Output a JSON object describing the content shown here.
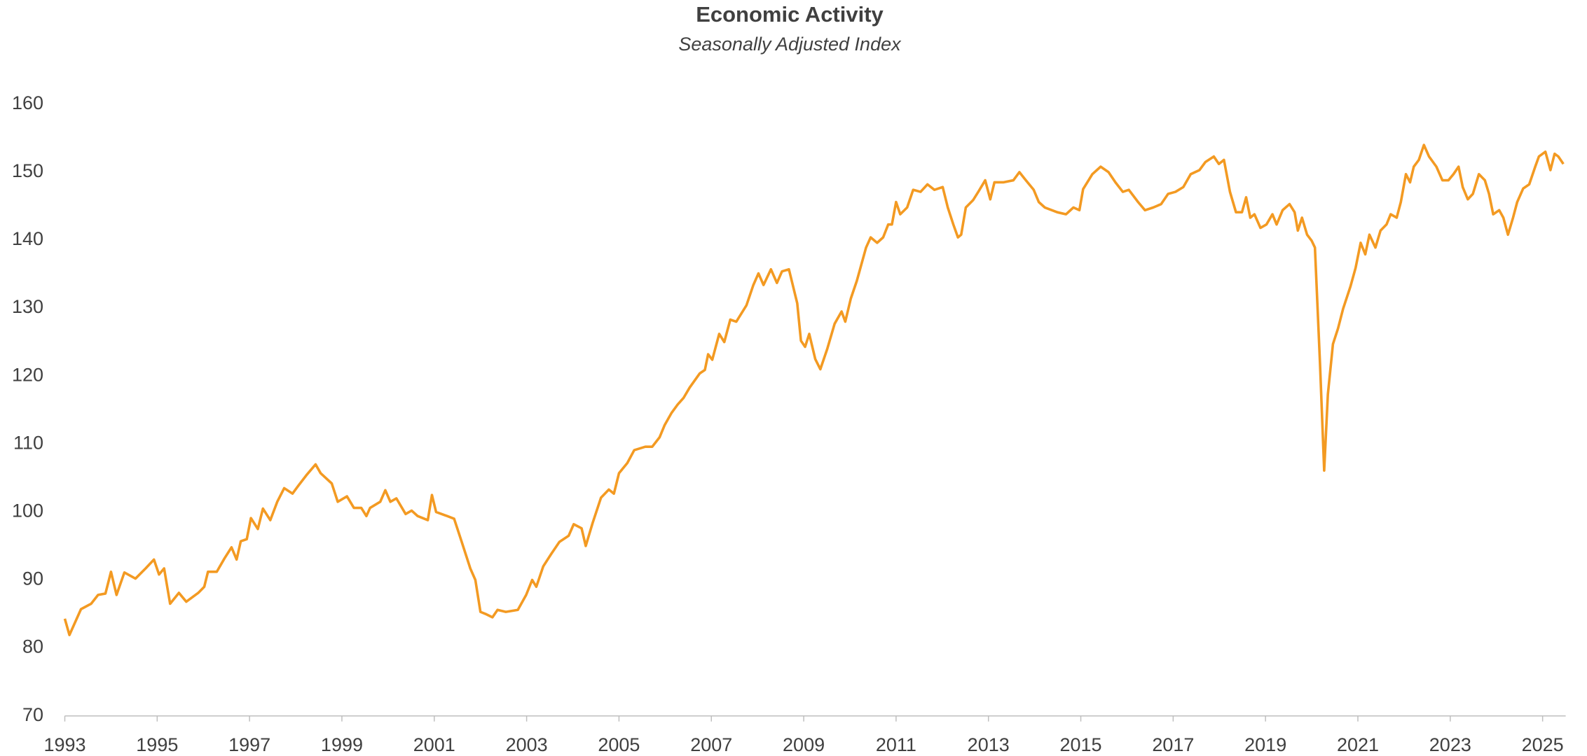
{
  "chart_data": {
    "type": "line",
    "title": "Economic Activity",
    "subtitle": "Seasonally Adjusted Index",
    "xlim": [
      1993,
      2025.5
    ],
    "xticks": [
      1993,
      1995,
      1997,
      1999,
      2001,
      2003,
      2005,
      2007,
      2009,
      2011,
      2013,
      2015,
      2017,
      2019,
      2021,
      2023,
      2025
    ],
    "ylim": [
      70,
      160
    ],
    "yticks": [
      70,
      80,
      90,
      100,
      110,
      120,
      130,
      140,
      150,
      160
    ],
    "grid": false,
    "series": [
      {
        "color": "#f39a22",
        "x": [
          1993.0,
          1993.1,
          1993.35,
          1993.57,
          1993.72,
          1993.88,
          1994.0,
          1994.12,
          1994.29,
          1994.53,
          1994.75,
          1994.93,
          1995.04,
          1995.15,
          1995.28,
          1995.47,
          1995.63,
          1995.89,
          1996.02,
          1996.1,
          1996.29,
          1996.46,
          1996.61,
          1996.72,
          1996.81,
          1996.94,
          1997.03,
          1997.18,
          1997.29,
          1997.45,
          1997.6,
          1997.75,
          1997.93,
          1998.06,
          1998.23,
          1998.43,
          1998.54,
          1998.78,
          1998.91,
          1999.11,
          1999.26,
          1999.42,
          1999.53,
          1999.61,
          1999.83,
          1999.94,
          2000.05,
          2000.18,
          2000.38,
          2000.51,
          2000.64,
          2000.86,
          2000.95,
          2001.04,
          2001.28,
          2001.43,
          2001.59,
          2001.78,
          2001.89,
          2002.0,
          2002.11,
          2002.26,
          2002.37,
          2002.55,
          2002.81,
          2002.99,
          2003.12,
          2003.21,
          2003.36,
          2003.53,
          2003.71,
          2003.91,
          2004.02,
          2004.19,
          2004.28,
          2004.43,
          2004.61,
          2004.78,
          2004.89,
          2005.0,
          2005.18,
          2005.33,
          2005.57,
          2005.72,
          2005.88,
          2005.99,
          2006.14,
          2006.27,
          2006.4,
          2006.53,
          2006.75,
          2006.86,
          2006.93,
          2007.02,
          2007.17,
          2007.28,
          2007.41,
          2007.54,
          2007.76,
          2007.91,
          2008.02,
          2008.13,
          2008.29,
          2008.42,
          2008.53,
          2008.68,
          2008.86,
          2008.94,
          2009.03,
          2009.12,
          2009.25,
          2009.36,
          2009.51,
          2009.67,
          2009.82,
          2009.9,
          2010.02,
          2010.15,
          2010.35,
          2010.45,
          2010.59,
          2010.72,
          2010.83,
          2010.91,
          2011.0,
          2011.09,
          2011.24,
          2011.37,
          2011.53,
          2011.68,
          2011.83,
          2012.01,
          2012.12,
          2012.24,
          2012.34,
          2012.41,
          2012.51,
          2012.67,
          2012.78,
          2012.93,
          2013.04,
          2013.13,
          2013.32,
          2013.54,
          2013.67,
          2013.81,
          2013.98,
          2014.09,
          2014.22,
          2014.49,
          2014.68,
          2014.84,
          2014.97,
          2015.05,
          2015.25,
          2015.43,
          2015.6,
          2015.75,
          2015.91,
          2016.04,
          2016.24,
          2016.39,
          2016.57,
          2016.74,
          2016.89,
          2017.05,
          2017.22,
          2017.38,
          2017.57,
          2017.7,
          2017.88,
          2017.99,
          2018.1,
          2018.23,
          2018.36,
          2018.49,
          2018.58,
          2018.67,
          2018.76,
          2018.89,
          2019.02,
          2019.15,
          2019.24,
          2019.37,
          2019.52,
          2019.63,
          2019.7,
          2019.79,
          2019.9,
          2020.0,
          2020.07,
          2020.18,
          2020.27,
          2020.35,
          2020.46,
          2020.57,
          2020.68,
          2020.84,
          2020.95,
          2021.06,
          2021.16,
          2021.25,
          2021.38,
          2021.49,
          2021.62,
          2021.71,
          2021.84,
          2021.93,
          2022.04,
          2022.13,
          2022.21,
          2022.32,
          2022.43,
          2022.54,
          2022.7,
          2022.83,
          2022.96,
          2023.07,
          2023.18,
          2023.27,
          2023.38,
          2023.49,
          2023.62,
          2023.75,
          2023.84,
          2023.93,
          2024.06,
          2024.15,
          2024.25,
          2024.36,
          2024.45,
          2024.58,
          2024.71,
          2024.84,
          2024.92,
          2025.06,
          2025.17,
          2025.26,
          2025.34,
          2025.45
        ],
        "values": [
          84.3,
          81.9,
          85.7,
          86.5,
          87.8,
          88,
          91.2,
          87.8,
          91.1,
          90.2,
          91.7,
          93.0,
          90.8,
          91.7,
          86.5,
          88.1,
          86.8,
          88.1,
          89,
          91.2,
          91.2,
          93.2,
          94.8,
          93,
          95.7,
          96,
          99.1,
          97.5,
          100.5,
          98.8,
          101.5,
          103.5,
          102.7,
          103.9,
          105.4,
          107,
          105.7,
          104.2,
          101.5,
          102.3,
          100.6,
          100.6,
          99.4,
          100.6,
          101.5,
          103.2,
          101.5,
          102,
          99.7,
          100.2,
          99.4,
          98.8,
          102.5,
          100,
          99.4,
          99,
          95.7,
          91.7,
          90,
          85.3,
          85,
          84.5,
          85.6,
          85.3,
          85.6,
          87.8,
          90,
          89,
          92,
          93.8,
          95.6,
          96.5,
          98.2,
          97.6,
          95,
          98.4,
          102.1,
          103.3,
          102.7,
          105.7,
          107.2,
          109.1,
          109.6,
          109.6,
          111,
          112.8,
          114.6,
          115.8,
          116.8,
          118.3,
          120.4,
          120.9,
          123.2,
          122.4,
          126.2,
          125,
          128.3,
          128,
          130.4,
          133.4,
          135.1,
          133.4,
          135.7,
          133.7,
          135.4,
          135.7,
          130.7,
          125.2,
          124.3,
          126.2,
          122.5,
          121,
          124,
          127.7,
          129.5,
          128,
          131.4,
          134,
          138.9,
          140.4,
          139.6,
          140.4,
          142.3,
          142.3,
          145.6,
          143.8,
          144.8,
          147.4,
          147.1,
          148.2,
          147.4,
          147.8,
          144.8,
          142.3,
          140.4,
          140.8,
          144.8,
          145.9,
          147.1,
          148.8,
          146,
          148.5,
          148.5,
          148.8,
          150,
          148.8,
          147.4,
          145.6,
          144.8,
          144.1,
          143.8,
          144.8,
          144.4,
          147.5,
          149.7,
          150.8,
          150,
          148.5,
          147.1,
          147.4,
          145.6,
          144.4,
          144.8,
          145.3,
          146.8,
          147.1,
          147.8,
          149.7,
          150.3,
          151.5,
          152.3,
          151.2,
          151.8,
          147.1,
          144.1,
          144.1,
          146.3,
          143.3,
          143.8,
          141.8,
          142.3,
          143.8,
          142.3,
          144.4,
          145.3,
          144.1,
          141.4,
          143.3,
          140.8,
          139.9,
          138.9,
          121.8,
          106.1,
          117.3,
          124.7,
          127,
          129.9,
          133.2,
          135.9,
          139.6,
          137.9,
          140.8,
          138.9,
          141.4,
          142.3,
          143.8,
          143.3,
          145.6,
          149.7,
          148.5,
          150.8,
          151.8,
          154,
          152.3,
          150.8,
          148.8,
          148.8,
          149.7,
          150.8,
          147.8,
          146,
          146.8,
          149.7,
          148.8,
          146.8,
          143.8,
          144.4,
          143.3,
          140.8,
          143.3,
          145.6,
          147.6,
          148.2,
          150.8,
          152.3,
          153.0,
          150.3,
          152.7,
          152.3,
          151.2
        ]
      }
    ]
  }
}
